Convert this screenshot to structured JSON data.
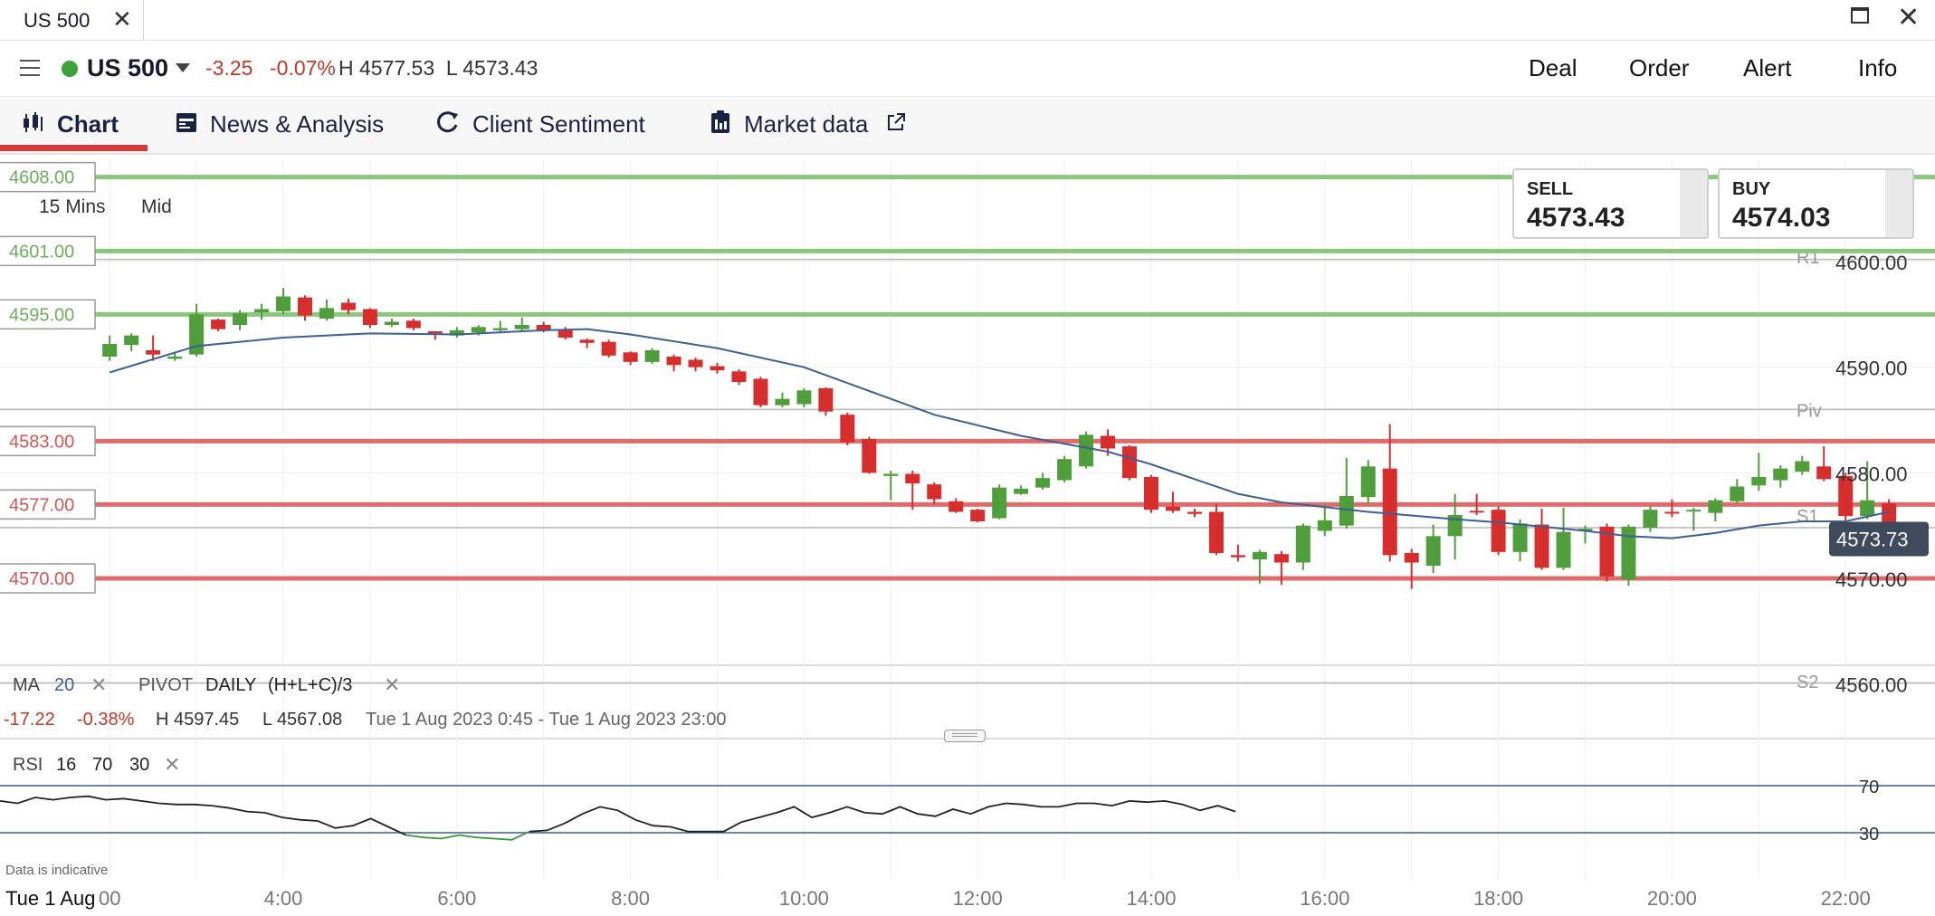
{
  "window": {
    "tab_title": "US 500",
    "close_glyph": "✕",
    "maximize_icon": "maximize-icon",
    "close_icon": "close-icon"
  },
  "header": {
    "menu_icon": "hamburger-icon",
    "status_color": "#3aa33a",
    "market": "US 500",
    "change_abs": "-3.25",
    "change_pct": "-0.07%",
    "high_low": "H 4577.53  L 4573.43",
    "actions": [
      "Deal",
      "Order",
      "Alert",
      "Info"
    ]
  },
  "tabs": [
    {
      "label": "Chart",
      "icon": "candlestick-icon",
      "active": true
    },
    {
      "label": "News & Analysis",
      "icon": "calendar-icon"
    },
    {
      "label": "Client Sentiment",
      "icon": "refresh-icon"
    },
    {
      "label": "Market data",
      "icon": "clipboard-icon",
      "external_icon": "external-link-icon"
    }
  ],
  "chart_settings": {
    "interval": "15 Mins",
    "price_type": "Mid"
  },
  "prices": {
    "sell_label": "SELL",
    "sell": "4573.43",
    "buy_label": "BUY",
    "buy": "4574.03"
  },
  "colors": {
    "up": "#4f9e3b",
    "down": "#d62d2d",
    "ma": "#3c5f96",
    "level_green": "#8cc57c",
    "level_red": "#e06b6b",
    "rsi_green": "#3a9a3a",
    "current_price_bg": "#3f4a5c"
  },
  "chart_data": {
    "type": "candlestick",
    "x_ticks": [
      "00",
      "4:00",
      "6:00",
      "8:00",
      "10:00",
      "12:00",
      "14:00",
      "16:00",
      "18:00",
      "20:00",
      "22:00"
    ],
    "x_first_label": "Tue 1 Aug",
    "y_ticks": [
      "4600.00",
      "4590.00",
      "4580.00",
      "4570.00",
      "4560.00"
    ],
    "ylim": [
      4560,
      4608
    ],
    "current_price": "4573.73",
    "levels": [
      {
        "label": "4608.00",
        "value": 4608,
        "kind": "green"
      },
      {
        "label": "4601.00",
        "value": 4601,
        "kind": "green"
      },
      {
        "label": "4595.00",
        "value": 4595,
        "kind": "green"
      },
      {
        "label": "4583.00",
        "value": 4583,
        "kind": "red"
      },
      {
        "label": "4577.00",
        "value": 4577,
        "kind": "red"
      },
      {
        "label": "4570.00",
        "value": 4570,
        "kind": "red"
      }
    ],
    "pivots": [
      {
        "label": "R1",
        "value": 4600.5
      },
      {
        "label": "Piv",
        "value": 4586
      },
      {
        "label": "S1",
        "value": 4576
      },
      {
        "label": "S2",
        "value": 4560.3
      }
    ],
    "pivot_hlines": [
      4600.2,
      4586,
      4574.8,
      4560.1
    ],
    "candles": [
      [
        2.0,
        4591,
        4592.2,
        4590.6,
        4593
      ],
      [
        2.25,
        4592.1,
        4593,
        4591.5,
        4593.2
      ],
      [
        2.5,
        4591.6,
        4591.2,
        4590.6,
        4593
      ],
      [
        2.75,
        4590.8,
        4591,
        4590.6,
        4591.3
      ],
      [
        3.0,
        4591.2,
        4595,
        4591,
        4596
      ],
      [
        3.25,
        4594.5,
        4593.6,
        4593.4,
        4594.6
      ],
      [
        3.5,
        4594,
        4595.1,
        4593.5,
        4595.4
      ],
      [
        3.75,
        4595.2,
        4595.5,
        4594.5,
        4596
      ],
      [
        4.0,
        4595.3,
        4596.7,
        4595,
        4597.5
      ],
      [
        4.25,
        4596.6,
        4594.9,
        4594.4,
        4596.8
      ],
      [
        4.5,
        4594.6,
        4595.6,
        4594.4,
        4596.4
      ],
      [
        4.75,
        4596.1,
        4595.4,
        4595,
        4596.5
      ],
      [
        5.0,
        4595.5,
        4594,
        4593.7,
        4595.6
      ],
      [
        5.25,
        4594,
        4594.3,
        4593.8,
        4594.6
      ],
      [
        5.5,
        4594.4,
        4593.7,
        4593.5,
        4594.6
      ],
      [
        5.75,
        4593.4,
        4593.2,
        4592.6,
        4593.4
      ],
      [
        6.0,
        4593,
        4593.5,
        4592.8,
        4593.8
      ],
      [
        6.25,
        4593.3,
        4593.8,
        4593,
        4594
      ],
      [
        6.5,
        4593.5,
        4593.7,
        4593.2,
        4594.4
      ],
      [
        6.75,
        4593.6,
        4594,
        4593.4,
        4594.7
      ],
      [
        7.0,
        4594,
        4593.5,
        4593.3,
        4594.3
      ],
      [
        7.25,
        4593.6,
        4592.8,
        4592.6,
        4593.8
      ],
      [
        7.5,
        4592.6,
        4592.3,
        4591.8,
        4592.7
      ],
      [
        7.75,
        4592.4,
        4591.1,
        4590.9,
        4592.6
      ],
      [
        8.0,
        4591.4,
        4590.5,
        4590.2,
        4591.5
      ],
      [
        8.25,
        4590.5,
        4591.6,
        4590.3,
        4591.8
      ],
      [
        8.5,
        4591,
        4590.2,
        4589.6,
        4591.2
      ],
      [
        8.75,
        4590.7,
        4590,
        4589.6,
        4590.9
      ],
      [
        9.0,
        4590.1,
        4589.7,
        4589.4,
        4590.4
      ],
      [
        9.25,
        4589.6,
        4588.6,
        4588.3,
        4589.8
      ],
      [
        9.5,
        4588.9,
        4586.4,
        4586.2,
        4589.1
      ],
      [
        9.75,
        4586.4,
        4587,
        4586.2,
        4587.6
      ],
      [
        10.0,
        4586.5,
        4587.8,
        4586.2,
        4588
      ],
      [
        10.25,
        4588,
        4585.8,
        4585.4,
        4588.1
      ],
      [
        10.5,
        4585.5,
        4582.9,
        4582.6,
        4585.7
      ],
      [
        10.75,
        4583.2,
        4580,
        4579.9,
        4583.4
      ],
      [
        11.0,
        4579.7,
        4579.9,
        4577.4,
        4580.2
      ],
      [
        11.25,
        4579.9,
        4579,
        4576.5,
        4580.2
      ],
      [
        11.5,
        4578.9,
        4577.5,
        4577,
        4579.1
      ],
      [
        11.75,
        4577.3,
        4576.3,
        4576.2,
        4577.6
      ],
      [
        12.0,
        4576.5,
        4575.4,
        4575.3,
        4576.6
      ],
      [
        12.25,
        4575.7,
        4578.6,
        4575.6,
        4578.9
      ],
      [
        12.5,
        4578,
        4578.5,
        4577.9,
        4578.8
      ],
      [
        12.75,
        4578.6,
        4579.5,
        4578.4,
        4580
      ],
      [
        13.0,
        4579.3,
        4581.3,
        4579.1,
        4581.6
      ],
      [
        13.25,
        4580.6,
        4583.6,
        4580.4,
        4583.9
      ],
      [
        13.5,
        4583.5,
        4582.3,
        4581.6,
        4584.1
      ],
      [
        13.75,
        4582.5,
        4579.5,
        4579.3,
        4582.6
      ],
      [
        14.0,
        4579.6,
        4576.5,
        4576.2,
        4579.8
      ],
      [
        14.25,
        4576.8,
        4576.4,
        4576.2,
        4578.2
      ],
      [
        14.5,
        4576.3,
        4576.1,
        4575.8,
        4576.6
      ],
      [
        14.75,
        4576.3,
        4572.4,
        4572.2,
        4577.1
      ],
      [
        15.0,
        4572.2,
        4572,
        4571.6,
        4573.2
      ],
      [
        15.25,
        4571.8,
        4572.5,
        4569.5,
        4572.7
      ],
      [
        15.5,
        4572.3,
        4571.5,
        4569.4,
        4572.6
      ],
      [
        15.75,
        4571.5,
        4575,
        4570.8,
        4575.2
      ],
      [
        16.0,
        4574.5,
        4575.5,
        4574,
        4577
      ],
      [
        16.25,
        4575,
        4577.8,
        4574.7,
        4581.4
      ],
      [
        16.5,
        4577.7,
        4580.6,
        4577,
        4581.2
      ],
      [
        16.75,
        4580.4,
        4572.2,
        4571.6,
        4584.6
      ],
      [
        17.0,
        4572.4,
        4571.5,
        4569,
        4572.8
      ],
      [
        17.25,
        4571.2,
        4574,
        4570.5,
        4575.1
      ],
      [
        17.5,
        4574,
        4576,
        4571.8,
        4578
      ],
      [
        17.75,
        4576.4,
        4576.3,
        4576,
        4578
      ],
      [
        18.0,
        4576.5,
        4572.5,
        4572.2,
        4576.8
      ],
      [
        18.25,
        4572.5,
        4575.2,
        4571.6,
        4575.6
      ],
      [
        18.5,
        4575.1,
        4571,
        4570.8,
        4576.6
      ],
      [
        18.75,
        4571,
        4574.4,
        4570.8,
        4576.7
      ],
      [
        19.0,
        4574.6,
        4574.7,
        4573.3,
        4575
      ],
      [
        19.25,
        4574.9,
        4570.2,
        4569.7,
        4575.2
      ],
      [
        19.5,
        4569.9,
        4574.9,
        4569.3,
        4575.1
      ],
      [
        19.75,
        4574.8,
        4576.5,
        4574.4,
        4576.8
      ],
      [
        20.0,
        4576.3,
        4576.2,
        4575.8,
        4577.5
      ],
      [
        20.25,
        4576.4,
        4576.5,
        4574.5,
        4576.7
      ],
      [
        20.5,
        4576.2,
        4577.4,
        4575.4,
        4577.6
      ],
      [
        20.75,
        4577.3,
        4578.7,
        4577.1,
        4579.4
      ],
      [
        21.0,
        4578.8,
        4579.6,
        4578.3,
        4581.9
      ],
      [
        21.25,
        4579.3,
        4580.4,
        4578.6,
        4580.7
      ],
      [
        21.5,
        4580.1,
        4581.1,
        4579.8,
        4581.6
      ],
      [
        21.75,
        4580.6,
        4579.4,
        4579.2,
        4582.5
      ],
      [
        22.0,
        4579.7,
        4575.9,
        4575.3,
        4580
      ],
      [
        22.25,
        4575.9,
        4577.4,
        4575.6,
        4581.1
      ],
      [
        22.5,
        4577.1,
        4573.6,
        4573.4,
        4577.5
      ]
    ],
    "ma_points": [
      [
        2.0,
        4589.5
      ],
      [
        3.0,
        4592
      ],
      [
        4.0,
        4592.8
      ],
      [
        5.0,
        4593.2
      ],
      [
        6.0,
        4593.1
      ],
      [
        7.0,
        4593.5
      ],
      [
        7.5,
        4593.6
      ],
      [
        8.0,
        4593.1
      ],
      [
        9.0,
        4591.8
      ],
      [
        10.0,
        4590
      ],
      [
        10.5,
        4588.5
      ],
      [
        11.5,
        4585.5
      ],
      [
        12.5,
        4583.5
      ],
      [
        13.5,
        4582
      ],
      [
        14.0,
        4580.8
      ],
      [
        15.0,
        4578
      ],
      [
        15.5,
        4577.2
      ],
      [
        16.5,
        4576.3
      ],
      [
        17.5,
        4575.6
      ],
      [
        18.0,
        4575.3
      ],
      [
        19.0,
        4574.5
      ],
      [
        19.5,
        4574
      ],
      [
        20.0,
        4573.8
      ],
      [
        20.5,
        4574.3
      ],
      [
        21.0,
        4575
      ],
      [
        21.5,
        4575.4
      ],
      [
        22.0,
        4575.4
      ],
      [
        22.5,
        4576.3
      ]
    ],
    "rsi": {
      "levels": [
        70,
        30
      ],
      "ylim": [
        20,
        80
      ],
      "points": [
        [
          2.0,
          57
        ],
        [
          2.5,
          55
        ],
        [
          3.0,
          60
        ],
        [
          3.5,
          58
        ],
        [
          4.0,
          60
        ],
        [
          4.5,
          61
        ],
        [
          5.0,
          58
        ],
        [
          5.5,
          59
        ],
        [
          6.0,
          57
        ],
        [
          6.5,
          55
        ],
        [
          7.0,
          54
        ],
        [
          7.5,
          54
        ],
        [
          8.0,
          53
        ],
        [
          8.5,
          51
        ],
        [
          9.0,
          48
        ],
        [
          9.5,
          47
        ],
        [
          10.0,
          43
        ],
        [
          10.5,
          41
        ],
        [
          11.0,
          40
        ],
        [
          11.5,
          34
        ],
        [
          12.0,
          36
        ],
        [
          12.5,
          42
        ],
        [
          13.0,
          35
        ],
        [
          13.5,
          28
        ],
        [
          14.0,
          26
        ],
        [
          14.5,
          25
        ],
        [
          15.0,
          28
        ],
        [
          15.5,
          26
        ],
        [
          16.0,
          25
        ],
        [
          16.5,
          24
        ],
        [
          17.0,
          31
        ],
        [
          17.5,
          32
        ],
        [
          18.0,
          38
        ],
        [
          18.5,
          46
        ],
        [
          19.0,
          52
        ],
        [
          19.5,
          49
        ],
        [
          20.0,
          41
        ],
        [
          20.5,
          36
        ],
        [
          21.0,
          35
        ],
        [
          21.5,
          31
        ],
        [
          22.0,
          31
        ],
        [
          22.5,
          31
        ],
        [
          23.0,
          39
        ],
        [
          23.5,
          43
        ],
        [
          24.0,
          47
        ],
        [
          24.5,
          52
        ],
        [
          25.0,
          43
        ],
        [
          25.5,
          47
        ],
        [
          26.0,
          52
        ],
        [
          26.5,
          47
        ],
        [
          27.0,
          46
        ],
        [
          27.5,
          52
        ],
        [
          28.0,
          46
        ],
        [
          28.5,
          44
        ],
        [
          29.0,
          50
        ],
        [
          29.5,
          46
        ],
        [
          30.0,
          52
        ],
        [
          30.5,
          55
        ],
        [
          31.0,
          54
        ],
        [
          31.5,
          52
        ],
        [
          32.0,
          52
        ],
        [
          32.5,
          55
        ],
        [
          33.0,
          55
        ],
        [
          33.5,
          53
        ],
        [
          34.0,
          57
        ],
        [
          34.5,
          56
        ],
        [
          35.0,
          57
        ],
        [
          35.5,
          54
        ],
        [
          36.0,
          49
        ],
        [
          36.5,
          53
        ],
        [
          37.0,
          48
        ]
      ]
    }
  },
  "indicators": {
    "ma_label": "MA",
    "ma_period": "20",
    "pivot_label": "PIVOT",
    "pivot_period": "DAILY",
    "pivot_formula": "(H+L+C)/3",
    "stats": {
      "change": "-17.22",
      "pct": "-0.38%",
      "high": "H 4597.45",
      "low": "L 4567.08",
      "range": "Tue 1 Aug 2023 0:45 - Tue 1 Aug 2023 23:00"
    },
    "rsi_label": "RSI",
    "rsi_period": "16",
    "rsi_upper": "70",
    "rsi_lower": "30"
  },
  "footer": {
    "disclaimer": "Data is indicative"
  }
}
